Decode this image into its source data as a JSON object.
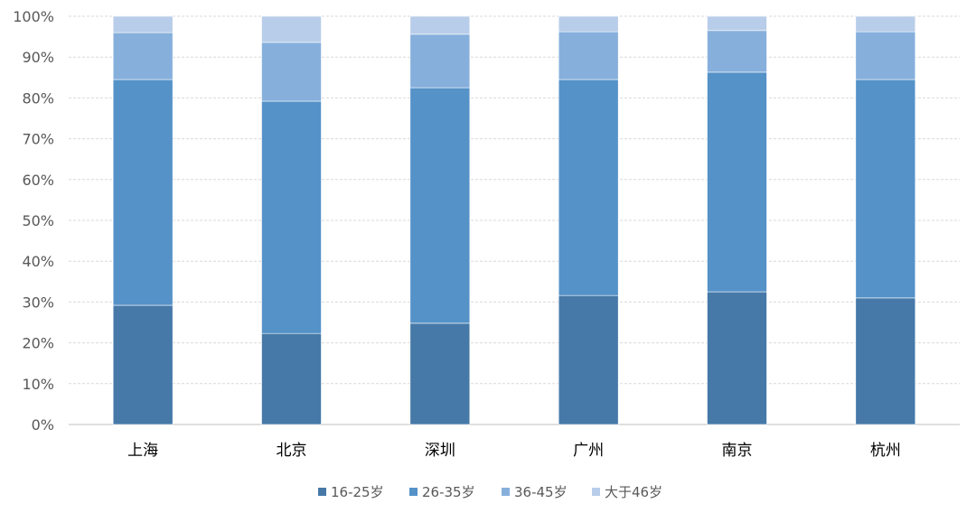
{
  "chart_data": {
    "type": "bar",
    "stacked": true,
    "normalized": true,
    "categories": [
      "上海",
      "北京",
      "深圳",
      "广州",
      "南京",
      "杭州"
    ],
    "series": [
      {
        "name": "16-25岁",
        "color": "#4679a8",
        "values": [
          29.2,
          22.3,
          24.8,
          31.6,
          32.5,
          31.0
        ]
      },
      {
        "name": "26-35岁",
        "color": "#5592c8",
        "values": [
          55.3,
          56.9,
          57.7,
          52.9,
          53.8,
          53.5
        ]
      },
      {
        "name": "36-45岁",
        "color": "#86afdc",
        "values": [
          11.5,
          14.4,
          13.1,
          11.7,
          10.2,
          11.7
        ]
      },
      {
        "name": "大于46岁",
        "color": "#b8cde9",
        "values": [
          4.0,
          6.4,
          4.4,
          3.8,
          3.5,
          3.8
        ]
      }
    ],
    "yticks": [
      "0%",
      "10%",
      "20%",
      "30%",
      "40%",
      "50%",
      "60%",
      "70%",
      "80%",
      "90%",
      "100%"
    ],
    "ylim": [
      0,
      100
    ],
    "grid": true,
    "legend": "bottom",
    "title": "",
    "xlabel": "",
    "ylabel": ""
  }
}
